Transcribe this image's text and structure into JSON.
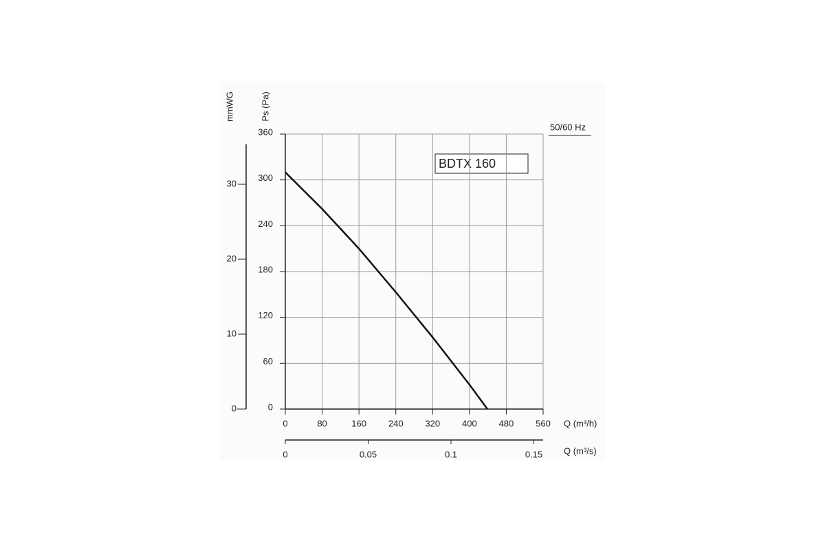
{
  "chart_data": {
    "type": "line",
    "annotations": [
      "BDTX 160",
      "50/60 Hz"
    ],
    "xlabel": "Q (m³/h)",
    "ylabel": "Ps (Pa)",
    "x2label": "Q (m³/s)",
    "y2label": "mmWG",
    "series": [
      {
        "name": "BDTX 160",
        "color": "#111111",
        "x": [
          0,
          80,
          160,
          240,
          320,
          400,
          439
        ],
        "values": [
          310,
          262,
          210,
          153,
          94,
          32,
          0
        ]
      }
    ],
    "xlim": [
      0,
      560
    ],
    "xticks": [
      0,
      80,
      160,
      240,
      320,
      400,
      480,
      560
    ],
    "ylim": [
      0,
      360
    ],
    "yticks": [
      0,
      60,
      120,
      180,
      240,
      300,
      360
    ],
    "y2lim": [
      0,
      36.7
    ],
    "y2ticks": [
      0,
      10,
      20,
      30
    ],
    "x2lim": [
      0,
      0.1556
    ],
    "x2ticks": [
      0,
      0.05,
      0.1,
      0.15
    ],
    "grid": true
  }
}
